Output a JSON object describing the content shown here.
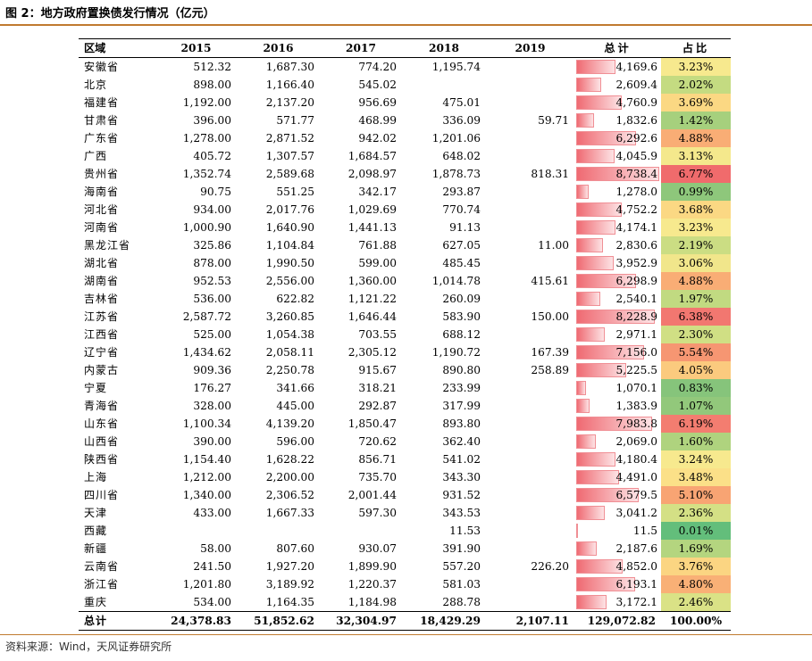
{
  "figure": {
    "title": "图 2：地方政府置换债发行情况（亿元）",
    "source": "资料来源：Wind，天风证券研究所"
  },
  "table": {
    "headers": [
      "区域",
      "2015",
      "2016",
      "2017",
      "2018",
      "2019",
      "总计",
      "占比"
    ],
    "max_total": 8738.4,
    "rows": [
      {
        "region": "安徽省",
        "y2015": "512.32",
        "y2016": "1,687.30",
        "y2017": "774.20",
        "y2018": "1,195.74",
        "y2019": "",
        "total": "4,169.6",
        "total_value": 4169.6,
        "share": "3.23%",
        "share_color": "#f7e98e"
      },
      {
        "region": "北京",
        "y2015": "898.00",
        "y2016": "1,166.40",
        "y2017": "545.02",
        "y2018": "",
        "y2019": "",
        "total": "2,609.4",
        "total_value": 2609.4,
        "share": "2.02%",
        "share_color": "#c4db81"
      },
      {
        "region": "福建省",
        "y2015": "1,192.00",
        "y2016": "2,137.20",
        "y2017": "956.69",
        "y2018": "475.01",
        "y2019": "",
        "total": "4,760.9",
        "total_value": 4760.9,
        "share": "3.69%",
        "share_color": "#fbd883"
      },
      {
        "region": "甘肃省",
        "y2015": "396.00",
        "y2016": "571.77",
        "y2017": "468.99",
        "y2018": "336.09",
        "y2019": "59.71",
        "total": "1,832.6",
        "total_value": 1832.6,
        "share": "1.42%",
        "share_color": "#a6d07d"
      },
      {
        "region": "广东省",
        "y2015": "1,278.00",
        "y2016": "2,871.52",
        "y2017": "942.02",
        "y2018": "1,201.06",
        "y2019": "",
        "total": "6,292.6",
        "total_value": 6292.6,
        "share": "4.88%",
        "share_color": "#f9ad75"
      },
      {
        "region": "广西",
        "y2015": "405.72",
        "y2016": "1,307.57",
        "y2017": "1,684.57",
        "y2018": "648.02",
        "y2019": "",
        "total": "4,045.9",
        "total_value": 4045.9,
        "share": "3.13%",
        "share_color": "#f4e88c"
      },
      {
        "region": "贵州省",
        "y2015": "1,352.74",
        "y2016": "2,589.68",
        "y2017": "2,098.97",
        "y2018": "1,878.73",
        "y2019": "818.31",
        "total": "8,738.4",
        "total_value": 8738.4,
        "share": "6.77%",
        "share_color": "#f06b6c"
      },
      {
        "region": "海南省",
        "y2015": "90.75",
        "y2016": "551.25",
        "y2017": "342.17",
        "y2018": "293.87",
        "y2019": "",
        "total": "1,278.0",
        "total_value": 1278.0,
        "share": "0.99%",
        "share_color": "#8ec77b"
      },
      {
        "region": "河北省",
        "y2015": "934.00",
        "y2016": "2,017.76",
        "y2017": "1,029.69",
        "y2018": "770.74",
        "y2019": "",
        "total": "4,752.2",
        "total_value": 4752.2,
        "share": "3.68%",
        "share_color": "#fbd883"
      },
      {
        "region": "河南省",
        "y2015": "1,000.90",
        "y2016": "1,640.90",
        "y2017": "1,441.13",
        "y2018": "91.13",
        "y2019": "",
        "total": "4,174.1",
        "total_value": 4174.1,
        "share": "3.23%",
        "share_color": "#f7e98e"
      },
      {
        "region": "黑龙江省",
        "y2015": "325.86",
        "y2016": "1,104.84",
        "y2017": "761.88",
        "y2018": "627.05",
        "y2019": "11.00",
        "total": "2,830.6",
        "total_value": 2830.6,
        "share": "2.19%",
        "share_color": "#cbdd83"
      },
      {
        "region": "湖北省",
        "y2015": "878.00",
        "y2016": "1,990.50",
        "y2017": "599.00",
        "y2018": "485.45",
        "y2019": "",
        "total": "3,952.9",
        "total_value": 3952.9,
        "share": "3.06%",
        "share_color": "#f1e68b"
      },
      {
        "region": "湖南省",
        "y2015": "952.53",
        "y2016": "2,556.00",
        "y2017": "1,360.00",
        "y2018": "1,014.78",
        "y2019": "415.61",
        "total": "6,298.9",
        "total_value": 6298.9,
        "share": "4.88%",
        "share_color": "#f9ad75"
      },
      {
        "region": "吉林省",
        "y2015": "536.00",
        "y2016": "622.82",
        "y2017": "1,121.22",
        "y2018": "260.09",
        "y2019": "",
        "total": "2,540.1",
        "total_value": 2540.1,
        "share": "1.97%",
        "share_color": "#c1da81"
      },
      {
        "region": "江苏省",
        "y2015": "2,587.72",
        "y2016": "3,260.85",
        "y2017": "1,646.44",
        "y2018": "583.90",
        "y2019": "150.00",
        "total": "8,228.9",
        "total_value": 8228.9,
        "share": "6.38%",
        "share_color": "#f27770"
      },
      {
        "region": "江西省",
        "y2015": "525.00",
        "y2016": "1,054.38",
        "y2017": "703.55",
        "y2018": "688.12",
        "y2019": "",
        "total": "2,971.1",
        "total_value": 2971.1,
        "share": "2.30%",
        "share_color": "#d0df84"
      },
      {
        "region": "辽宁省",
        "y2015": "1,434.62",
        "y2016": "2,058.11",
        "y2017": "2,305.12",
        "y2018": "1,190.72",
        "y2019": "167.39",
        "total": "7,156.0",
        "total_value": 7156.0,
        "share": "5.54%",
        "share_color": "#f69672"
      },
      {
        "region": "内蒙古",
        "y2015": "909.36",
        "y2016": "2,250.78",
        "y2017": "915.67",
        "y2018": "890.80",
        "y2019": "258.89",
        "total": "5,225.5",
        "total_value": 5225.5,
        "share": "4.05%",
        "share_color": "#fbca7e"
      },
      {
        "region": "宁夏",
        "y2015": "176.27",
        "y2016": "341.66",
        "y2017": "318.21",
        "y2018": "233.99",
        "y2019": "",
        "total": "1,070.1",
        "total_value": 1070.1,
        "share": "0.83%",
        "share_color": "#86c47b"
      },
      {
        "region": "青海省",
        "y2015": "328.00",
        "y2016": "445.00",
        "y2017": "292.87",
        "y2018": "317.99",
        "y2019": "",
        "total": "1,383.9",
        "total_value": 1383.9,
        "share": "1.07%",
        "share_color": "#92c87b"
      },
      {
        "region": "山东省",
        "y2015": "1,100.34",
        "y2016": "4,139.20",
        "y2017": "1,850.47",
        "y2018": "893.80",
        "y2019": "",
        "total": "7,983.8",
        "total_value": 7983.8,
        "share": "6.19%",
        "share_color": "#f37d70"
      },
      {
        "region": "山西省",
        "y2015": "390.00",
        "y2016": "596.00",
        "y2017": "720.62",
        "y2018": "362.40",
        "y2019": "",
        "total": "2,069.0",
        "total_value": 2069.0,
        "share": "1.60%",
        "share_color": "#afd37e"
      },
      {
        "region": "陕西省",
        "y2015": "1,154.40",
        "y2016": "1,628.22",
        "y2017": "856.71",
        "y2018": "541.02",
        "y2019": "",
        "total": "4,180.4",
        "total_value": 4180.4,
        "share": "3.24%",
        "share_color": "#f7e98e"
      },
      {
        "region": "上海",
        "y2015": "1,212.00",
        "y2016": "2,200.00",
        "y2017": "735.70",
        "y2018": "343.30",
        "y2019": "",
        "total": "4,491.0",
        "total_value": 4491.0,
        "share": "3.48%",
        "share_color": "#fbe088"
      },
      {
        "region": "四川省",
        "y2015": "1,340.00",
        "y2016": "2,306.52",
        "y2017": "2,001.44",
        "y2018": "931.52",
        "y2019": "",
        "total": "6,579.5",
        "total_value": 6579.5,
        "share": "5.10%",
        "share_color": "#f8a473"
      },
      {
        "region": "天津",
        "y2015": "433.00",
        "y2016": "1,667.33",
        "y2017": "597.30",
        "y2018": "343.53",
        "y2019": "",
        "total": "3,041.2",
        "total_value": 3041.2,
        "share": "2.36%",
        "share_color": "#d4e085"
      },
      {
        "region": "西藏",
        "y2015": "",
        "y2016": "",
        "y2017": "",
        "y2018": "11.53",
        "y2019": "",
        "total": "11.5",
        "total_value": 11.5,
        "share": "0.01%",
        "share_color": "#63be7b"
      },
      {
        "region": "新疆",
        "y2015": "58.00",
        "y2016": "807.60",
        "y2017": "930.07",
        "y2018": "391.90",
        "y2019": "",
        "total": "2,187.6",
        "total_value": 2187.6,
        "share": "1.69%",
        "share_color": "#b4d57f"
      },
      {
        "region": "云南省",
        "y2015": "241.50",
        "y2016": "1,927.20",
        "y2017": "1,899.90",
        "y2018": "557.20",
        "y2019": "226.20",
        "total": "4,852.0",
        "total_value": 4852.0,
        "share": "3.76%",
        "share_color": "#fbd582"
      },
      {
        "region": "浙江省",
        "y2015": "1,201.80",
        "y2016": "3,189.92",
        "y2017": "1,220.37",
        "y2018": "581.03",
        "y2019": "",
        "total": "6,193.1",
        "total_value": 6193.1,
        "share": "4.80%",
        "share_color": "#f9b076"
      },
      {
        "region": "重庆",
        "y2015": "534.00",
        "y2016": "1,164.35",
        "y2017": "1,184.98",
        "y2018": "288.78",
        "y2019": "",
        "total": "3,172.1",
        "total_value": 3172.1,
        "share": "2.46%",
        "share_color": "#dae286"
      }
    ],
    "summary": {
      "region": "总计",
      "y2015": "24,378.83",
      "y2016": "51,852.62",
      "y2017": "32,304.97",
      "y2018": "18,429.29",
      "y2019": "2,107.11",
      "total": "129,072.82",
      "share": "100.00%"
    }
  }
}
